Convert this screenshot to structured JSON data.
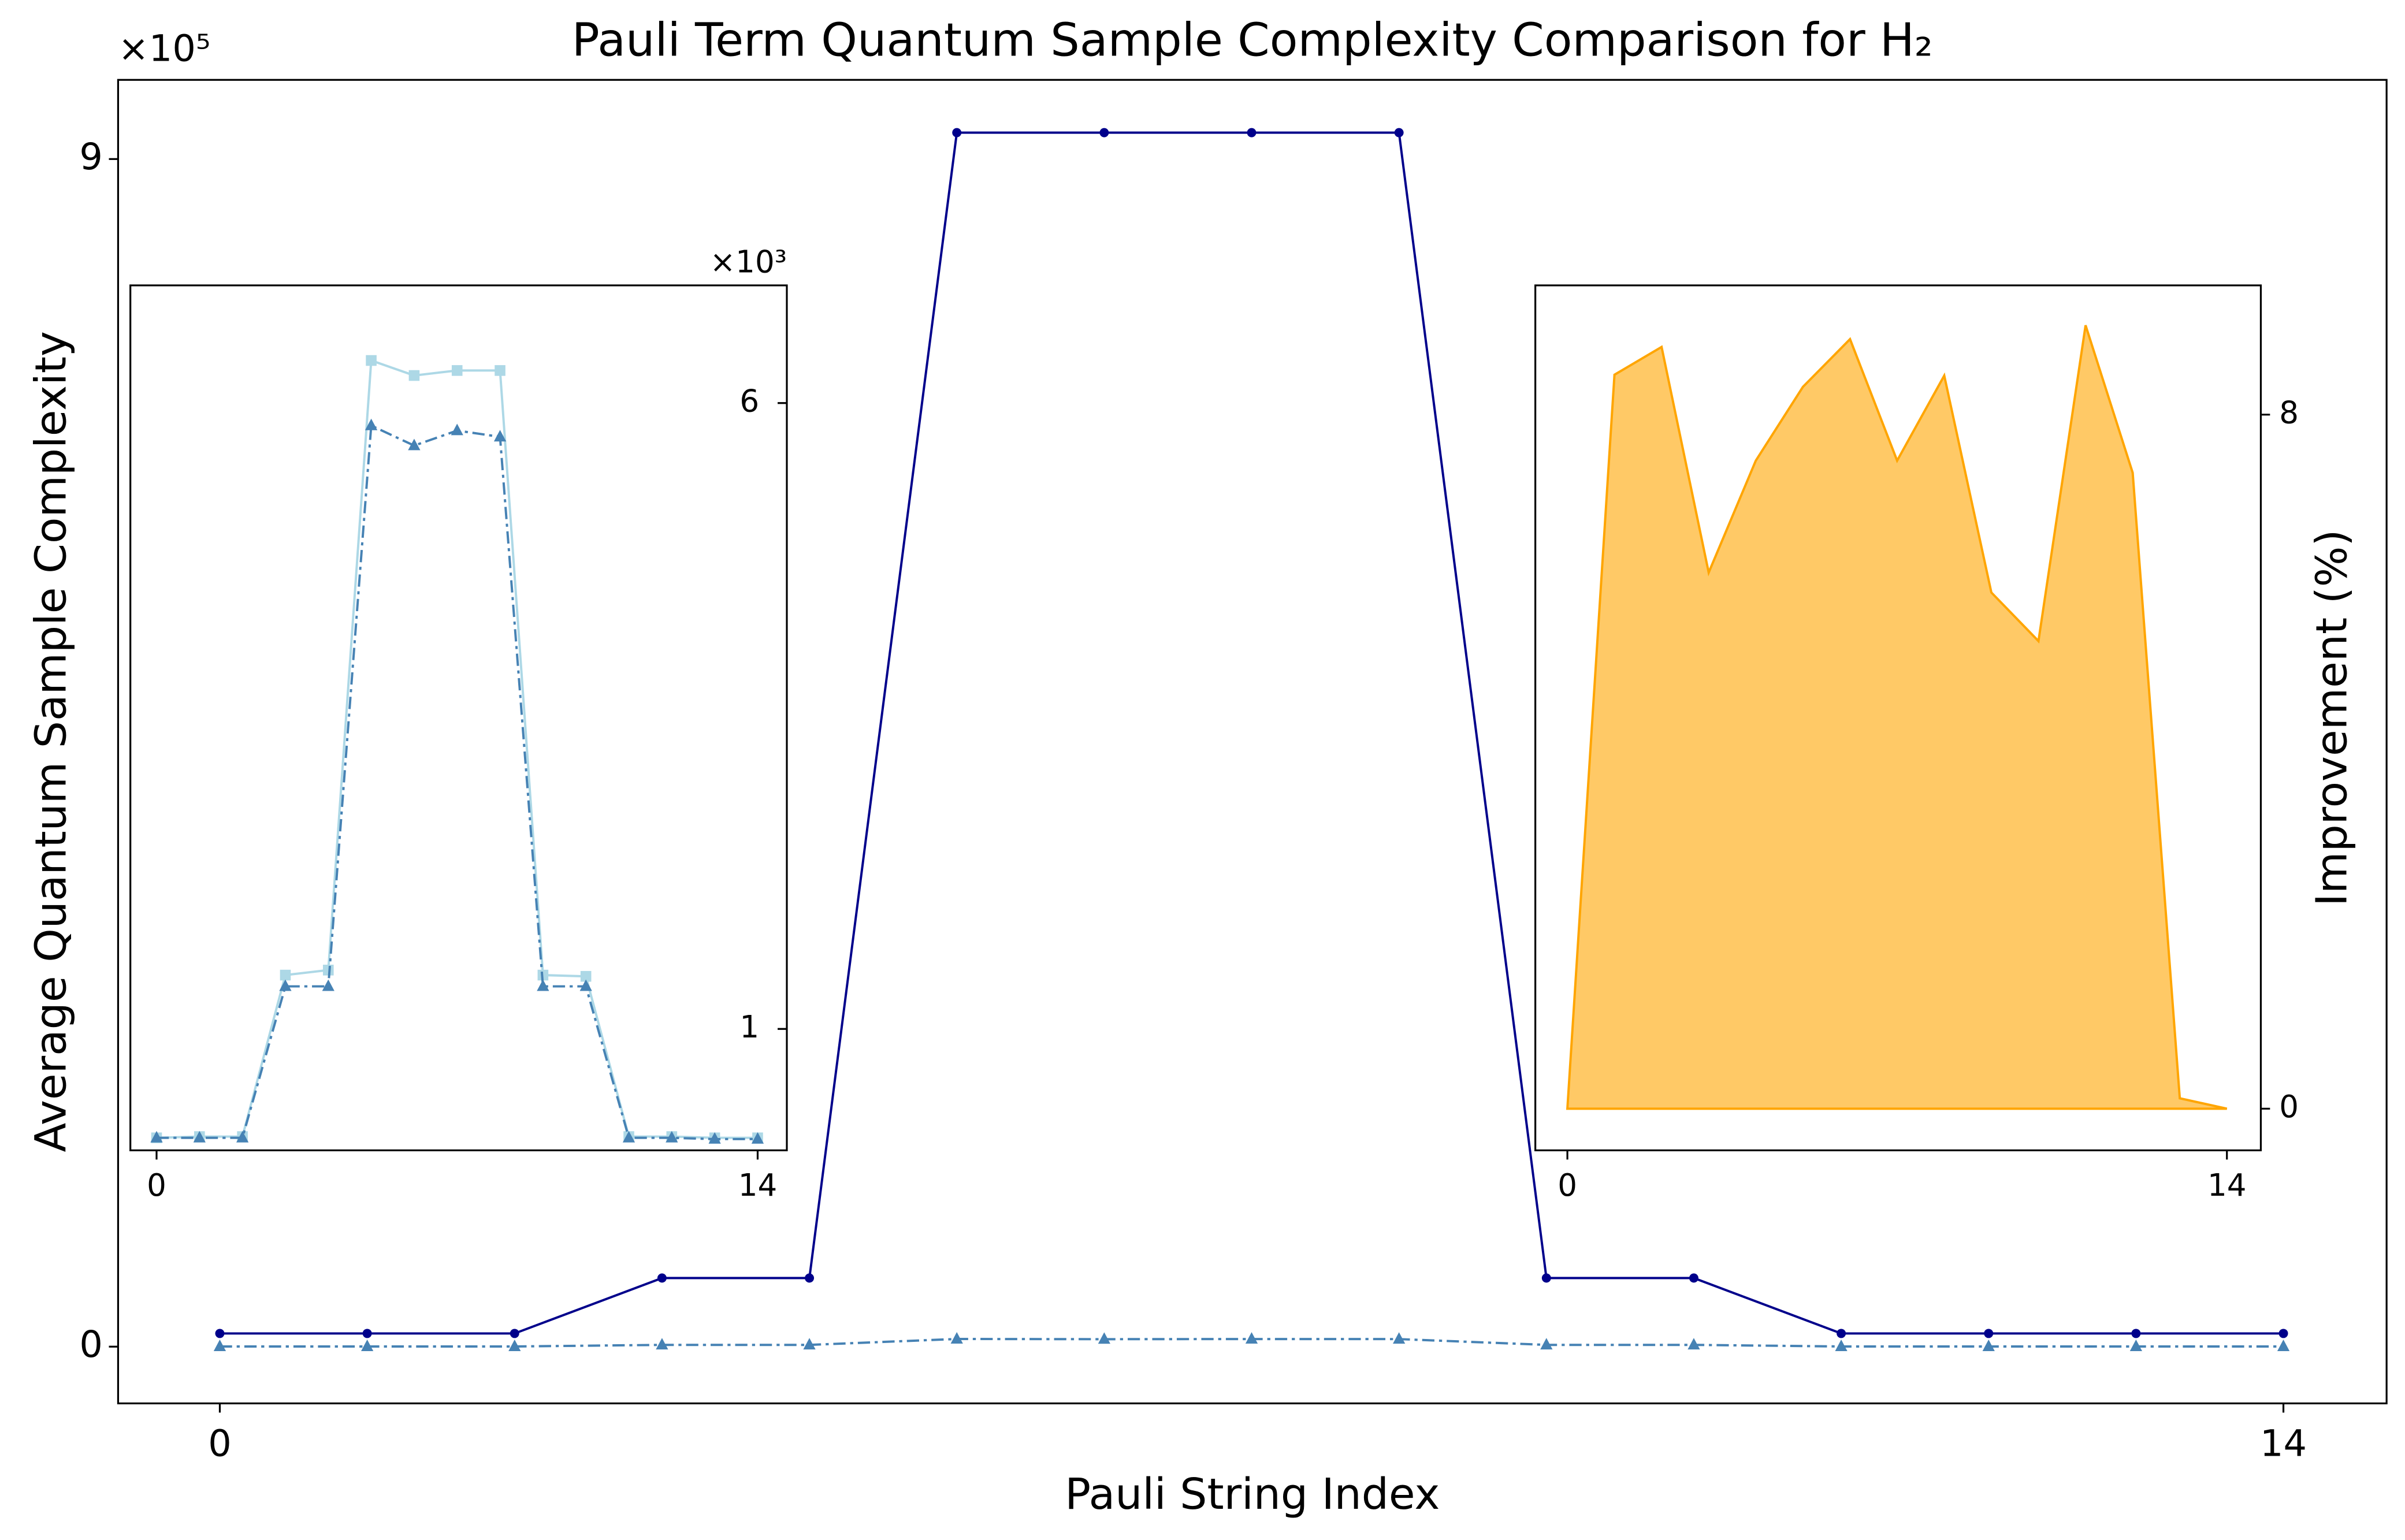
{
  "chart_data": [
    {
      "type": "line",
      "title": "Pauli Term Quantum Sample Complexity Comparison for H₂",
      "x_label": "Pauli String Index",
      "y_label": "Average Quantum Sample Complexity",
      "y_offset_label": "×10⁵",
      "x": [
        0,
        1,
        2,
        3,
        4,
        5,
        6,
        7,
        8,
        9,
        10,
        11,
        12,
        13,
        14
      ],
      "xlim": [
        -0.69,
        14.7
      ],
      "xticks": [
        0,
        14
      ],
      "ylim": [
        -0.43,
        9.6
      ],
      "yticks": [
        0,
        9
      ],
      "series": [
        {
          "color": "#00008b",
          "marker": "o",
          "linestyle": "solid",
          "values": [
            0.1,
            0.1,
            0.1,
            0.52,
            0.52,
            9.2,
            9.2,
            9.2,
            9.2,
            0.52,
            0.52,
            0.1,
            0.1,
            0.1,
            0.1
          ]
        },
        {
          "color": "#4682b4",
          "marker": "^",
          "linestyle": "dashdot",
          "values": [
            0.0013,
            0.0013,
            0.0013,
            0.0134,
            0.0134,
            0.0582,
            0.0566,
            0.0578,
            0.0573,
            0.0134,
            0.0134,
            0.0013,
            0.0013,
            0.0012,
            0.0012
          ]
        }
      ]
    },
    {
      "type": "line",
      "y_offset_label": "×10³",
      "x": [
        0,
        1,
        2,
        3,
        4,
        5,
        6,
        7,
        8,
        9,
        10,
        11,
        12,
        13,
        14
      ],
      "xlim": [
        -0.61,
        14.68
      ],
      "xticks": [
        0,
        14
      ],
      "ylim": [
        0.03,
        6.94
      ],
      "yticks": [
        1,
        6
      ],
      "series": [
        {
          "color": "#add8e6",
          "marker": "s",
          "linestyle": "solid",
          "values": [
            0.13,
            0.14,
            0.14,
            1.43,
            1.47,
            6.34,
            6.22,
            6.26,
            6.26,
            1.43,
            1.42,
            0.14,
            0.14,
            0.13,
            0.13
          ]
        },
        {
          "color": "#4682b4",
          "marker": "^",
          "linestyle": "dashdot",
          "values": [
            0.13,
            0.13,
            0.13,
            1.34,
            1.34,
            5.82,
            5.66,
            5.78,
            5.73,
            1.34,
            1.34,
            0.13,
            0.13,
            0.12,
            0.12
          ]
        }
      ]
    },
    {
      "type": "area",
      "y_label": "Improvement (%)",
      "x": [
        0,
        1,
        2,
        3,
        4,
        5,
        6,
        7,
        8,
        9,
        10,
        11,
        12,
        13,
        14
      ],
      "xlim": [
        -0.68,
        14.72
      ],
      "xticks": [
        0,
        14
      ],
      "ylim": [
        -0.48,
        9.49
      ],
      "yticks": [
        0,
        8
      ],
      "series": [
        {
          "color": "#ffa500",
          "values": [
            0,
            8.46,
            8.78,
            6.18,
            7.47,
            8.32,
            8.87,
            7.47,
            8.45,
            5.95,
            5.39,
            9.03,
            7.33,
            0.12,
            0
          ]
        }
      ]
    }
  ]
}
